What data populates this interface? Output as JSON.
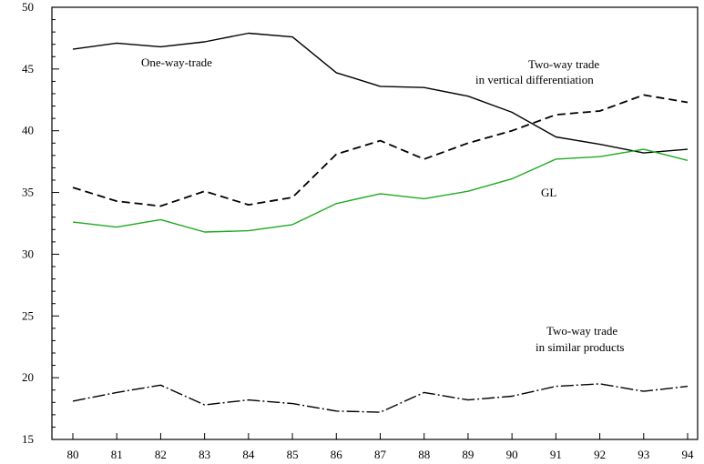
{
  "chart_data": {
    "type": "line",
    "x": [
      "80",
      "81",
      "82",
      "83",
      "84",
      "85",
      "86",
      "87",
      "88",
      "89",
      "90",
      "91",
      "92",
      "93",
      "94"
    ],
    "ylim": [
      15,
      50
    ],
    "yticks": [
      "15",
      "20",
      "25",
      "30",
      "35",
      "40",
      "45",
      "50"
    ],
    "grid": false,
    "series": [
      {
        "key": "one_way",
        "values": [
          46.6,
          47.1,
          46.8,
          47.2,
          47.9,
          47.6,
          44.7,
          43.6,
          43.5,
          42.8,
          41.5,
          39.5,
          38.9,
          38.2,
          38.5
        ],
        "color": "#000000",
        "dash": "solid"
      },
      {
        "key": "vertical",
        "values": [
          35.4,
          34.3,
          33.9,
          35.1,
          34.0,
          34.6,
          38.1,
          39.2,
          37.7,
          39.0,
          40.0,
          41.3,
          41.6,
          42.9,
          42.3
        ],
        "color": "#000000",
        "dash": "dashed"
      },
      {
        "key": "gl",
        "values": [
          32.6,
          32.2,
          32.8,
          31.8,
          31.9,
          32.4,
          34.1,
          34.9,
          34.5,
          35.1,
          36.1,
          37.7,
          37.9,
          38.5,
          37.6
        ],
        "color": "#1faa1f",
        "dash": "solid"
      },
      {
        "key": "similar",
        "values": [
          18.1,
          18.8,
          19.4,
          17.8,
          18.2,
          17.9,
          17.3,
          17.2,
          18.8,
          18.2,
          18.5,
          19.3,
          19.5,
          18.9,
          19.3
        ],
        "color": "#000000",
        "dash": "dashdot"
      }
    ],
    "annotations": {
      "one_way": "One-way-trade",
      "vertical_line1": "Two-way trade",
      "vertical_line2": "in vertical differentiation",
      "gl": "GL",
      "similar_line1": "Two-way trade",
      "similar_line2": "in similar products"
    }
  }
}
